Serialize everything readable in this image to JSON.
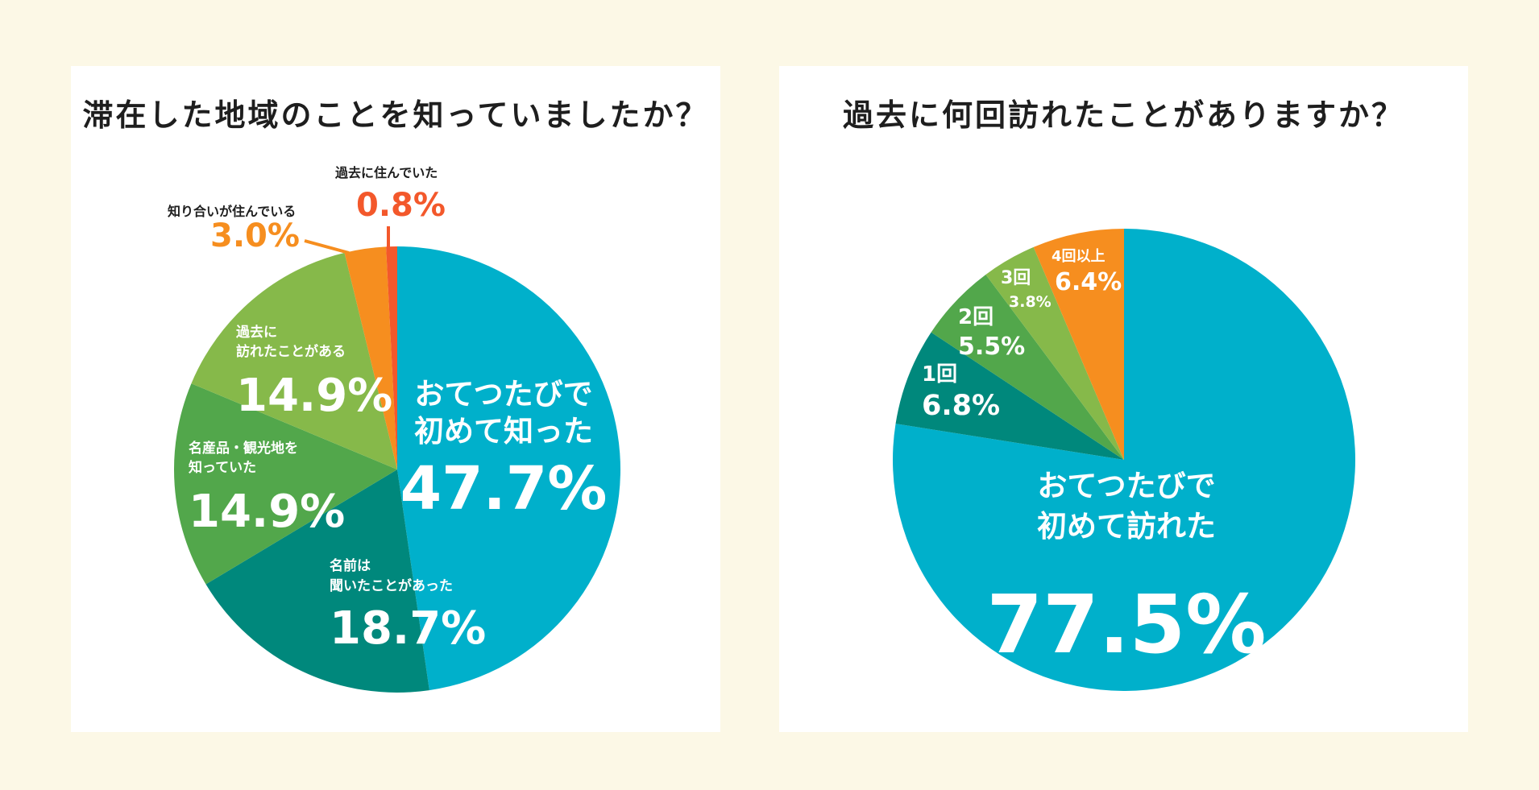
{
  "colors": {
    "background": "#fcf8e6",
    "panel": "#ffffff",
    "cyan": "#00b0cb",
    "teal": "#00887c",
    "green": "#52a74b",
    "light_green": "#86b94a",
    "orange": "#f68e1f",
    "red_orange": "#f3582b"
  },
  "chart_data": [
    {
      "type": "pie",
      "title": "滞在した地域のことを知っていましたか？",
      "slices": [
        {
          "label": "おてつたびで初めて知った",
          "label_lines": [
            "おてつたびで",
            "初めて知った"
          ],
          "value": 47.7,
          "value_text": "47.7%",
          "color": "#00b0cb"
        },
        {
          "label": "名前は聞いたことがあった",
          "label_lines": [
            "名前は",
            "聞いたことがあった"
          ],
          "value": 18.7,
          "value_text": "18.7%",
          "color": "#00887c"
        },
        {
          "label": "名産品・観光地を知っていた",
          "label_lines": [
            "名産品・観光地を",
            "知っていた"
          ],
          "value": 14.9,
          "value_text": "14.9%",
          "color": "#52a74b"
        },
        {
          "label": "過去に訪れたことがある",
          "label_lines": [
            "過去に",
            "訪れたことがある"
          ],
          "value": 14.9,
          "value_text": "14.9%",
          "color": "#86b94a"
        },
        {
          "label": "知り合いが住んでいる",
          "label_lines": [
            "知り合いが住んでいる"
          ],
          "value": 3.0,
          "value_text": "3.0%",
          "color": "#f68e1f"
        },
        {
          "label": "過去に住んでいた",
          "label_lines": [
            "過去に住んでいた"
          ],
          "value": 0.8,
          "value_text": "0.8%",
          "color": "#f3582b"
        }
      ]
    },
    {
      "type": "pie",
      "title": "過去に何回訪れたことがありますか？",
      "slices": [
        {
          "label": "おてつたびで初めて訪れた",
          "label_lines": [
            "おてつたびで",
            "初めて訪れた"
          ],
          "value": 77.5,
          "value_text": "77.5%",
          "color": "#00b0cb"
        },
        {
          "label": "1回",
          "label_lines": [
            "1回"
          ],
          "value": 6.8,
          "value_text": "6.8%",
          "color": "#00887c"
        },
        {
          "label": "2回",
          "label_lines": [
            "2回"
          ],
          "value": 5.5,
          "value_text": "5.5%",
          "color": "#52a74b"
        },
        {
          "label": "3回",
          "label_lines": [
            "3回"
          ],
          "value": 3.8,
          "value_text": "3.8%",
          "color": "#86b94a"
        },
        {
          "label": "4回以上",
          "label_lines": [
            "4回以上"
          ],
          "value": 6.4,
          "value_text": "6.4%",
          "color": "#f68e1f"
        }
      ]
    }
  ]
}
